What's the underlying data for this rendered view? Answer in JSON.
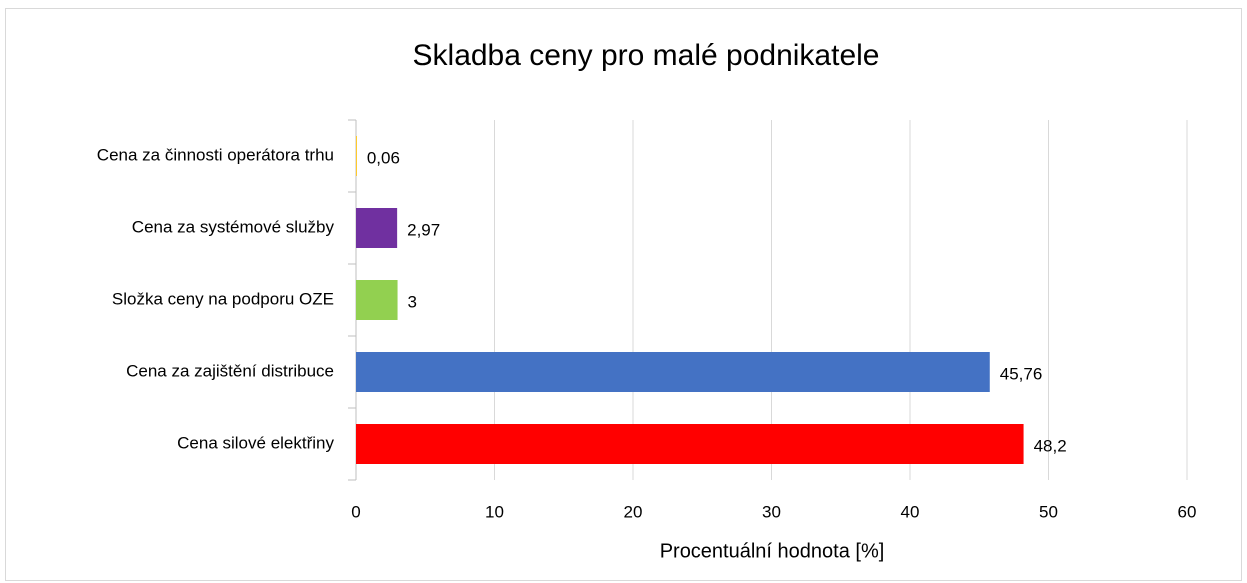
{
  "chart_data": {
    "type": "barh",
    "title": "Skladba ceny pro malé podnikatele",
    "categories": [
      "Cena za činnosti operátora trhu",
      "Cena za systémové služby",
      "Složka ceny na podporu OZE",
      "Cena za zajištění distribuce",
      "Cena silové elektřiny"
    ],
    "values": [
      0.06,
      2.97,
      3,
      45.76,
      48.2
    ],
    "value_labels": [
      "0,06",
      "2,97",
      "3",
      "45,76",
      "48,2"
    ],
    "colors": [
      "#ffc000",
      "#7030a0",
      "#92d050",
      "#4472c4",
      "#ff0000"
    ],
    "xlabel": "Procentuální hodnota [%]",
    "xlim": [
      0,
      60
    ],
    "xticks": [
      0,
      10,
      20,
      30,
      40,
      50,
      60
    ],
    "grid": true
  }
}
